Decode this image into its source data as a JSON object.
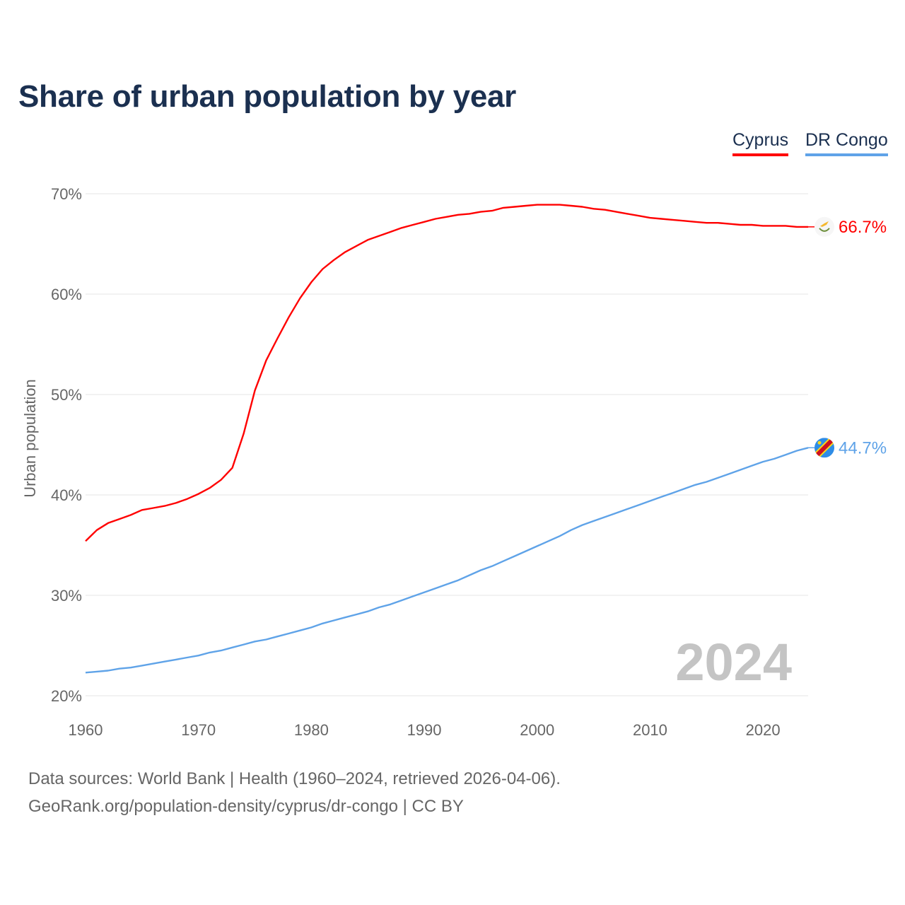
{
  "chart_data": {
    "type": "line",
    "title": "Share of urban population by year",
    "ylabel": "Urban population",
    "xlabel": "",
    "xlim": [
      1960,
      2024
    ],
    "ylim": [
      20,
      70
    ],
    "x_ticks": [
      "1960",
      "1970",
      "1980",
      "1990",
      "2000",
      "2010",
      "2020"
    ],
    "y_ticks": [
      "20%",
      "30%",
      "40%",
      "50%",
      "60%",
      "70%"
    ],
    "grid": true,
    "legend_position": "top-right",
    "year_watermark": "2024",
    "x": [
      1960,
      1961,
      1962,
      1963,
      1964,
      1965,
      1966,
      1967,
      1968,
      1969,
      1970,
      1971,
      1972,
      1973,
      1974,
      1975,
      1976,
      1977,
      1978,
      1979,
      1980,
      1981,
      1982,
      1983,
      1984,
      1985,
      1986,
      1987,
      1988,
      1989,
      1990,
      1991,
      1992,
      1993,
      1994,
      1995,
      1996,
      1997,
      1998,
      1999,
      2000,
      2001,
      2002,
      2003,
      2004,
      2005,
      2006,
      2007,
      2008,
      2009,
      2010,
      2011,
      2012,
      2013,
      2014,
      2015,
      2016,
      2017,
      2018,
      2019,
      2020,
      2021,
      2022,
      2023,
      2024
    ],
    "series": [
      {
        "name": "Cyprus",
        "color": "#ff0000",
        "end_label": "66.7%",
        "flag": "cyprus-flag",
        "values": [
          35.4,
          36.5,
          37.2,
          37.6,
          38.0,
          38.5,
          38.7,
          38.9,
          39.2,
          39.6,
          40.1,
          40.7,
          41.5,
          42.7,
          46.1,
          50.4,
          53.4,
          55.6,
          57.7,
          59.6,
          61.2,
          62.5,
          63.4,
          64.2,
          64.8,
          65.4,
          65.8,
          66.2,
          66.6,
          66.9,
          67.2,
          67.5,
          67.7,
          67.9,
          68.0,
          68.2,
          68.3,
          68.6,
          68.7,
          68.8,
          68.9,
          68.9,
          68.9,
          68.8,
          68.7,
          68.5,
          68.4,
          68.2,
          68.0,
          67.8,
          67.6,
          67.5,
          67.4,
          67.3,
          67.2,
          67.1,
          67.1,
          67.0,
          66.9,
          66.9,
          66.8,
          66.8,
          66.8,
          66.7,
          66.7
        ]
      },
      {
        "name": "DR Congo",
        "color": "#5fa3e8",
        "end_label": "44.7%",
        "flag": "dr-congo-flag",
        "values": [
          22.3,
          22.4,
          22.5,
          22.7,
          22.8,
          23.0,
          23.2,
          23.4,
          23.6,
          23.8,
          24.0,
          24.3,
          24.5,
          24.8,
          25.1,
          25.4,
          25.6,
          25.9,
          26.2,
          26.5,
          26.8,
          27.2,
          27.5,
          27.8,
          28.1,
          28.4,
          28.8,
          29.1,
          29.5,
          29.9,
          30.3,
          30.7,
          31.1,
          31.5,
          32.0,
          32.5,
          32.9,
          33.4,
          33.9,
          34.4,
          34.9,
          35.4,
          35.9,
          36.5,
          37.0,
          37.4,
          37.8,
          38.2,
          38.6,
          39.0,
          39.4,
          39.8,
          40.2,
          40.6,
          41.0,
          41.3,
          41.7,
          42.1,
          42.5,
          42.9,
          43.3,
          43.6,
          44.0,
          44.4,
          44.7
        ]
      }
    ]
  },
  "footer": {
    "line1": "Data sources: World Bank | Health (1960–2024, retrieved 2026-04-06).",
    "line2": "GeoRank.org/population-density/cyprus/dr-congo | CC BY"
  }
}
